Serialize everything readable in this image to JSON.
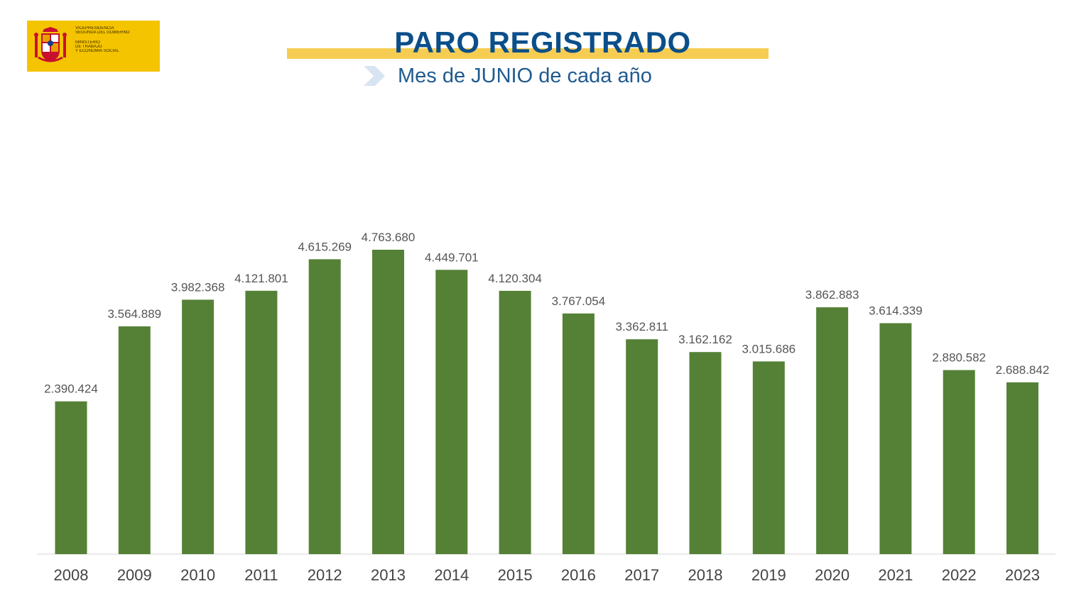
{
  "logo": {
    "lines": [
      "VICEPRESIDENCIA",
      "SEGUNDA DEL GOBIERNO",
      "",
      "MINISTERIO",
      "DE TRABAJO",
      "Y ECONOMÍA SOCIAL"
    ],
    "background": "#f5c400",
    "icon": "spain-coat-of-arms-icon"
  },
  "header": {
    "title": "PARO REGISTRADO",
    "subtitle": "Mes de JUNIO de cada año",
    "subtitle_icon": "chevron-right-icon",
    "title_color": "#0b4f8a",
    "band_color": "#f6cd52"
  },
  "chart_data": {
    "type": "bar",
    "categories": [
      "2008",
      "2009",
      "2010",
      "2011",
      "2012",
      "2013",
      "2014",
      "2015",
      "2016",
      "2017",
      "2018",
      "2019",
      "2020",
      "2021",
      "2022",
      "2023"
    ],
    "values": [
      2390424,
      3564889,
      3982368,
      4121801,
      4615269,
      4763680,
      4449701,
      4120304,
      3767054,
      3362811,
      3162162,
      3015686,
      3862883,
      3614339,
      2880582,
      2688842
    ],
    "data_labels": [
      "2.390.424",
      "3.564.889",
      "3.982.368",
      "4.121.801",
      "4.615.269",
      "4.763.680",
      "4.449.701",
      "4.120.304",
      "3.767.054",
      "3.362.811",
      "3.162.162",
      "3.015.686",
      "3.862.883",
      "3.614.339",
      "2.880.582",
      "2.688.842"
    ],
    "title": "PARO REGISTRADO",
    "xlabel": "",
    "ylabel": "",
    "ylim": [
      0,
      4763680
    ],
    "grid": false,
    "legend": "none",
    "bar_color": "#558136"
  }
}
